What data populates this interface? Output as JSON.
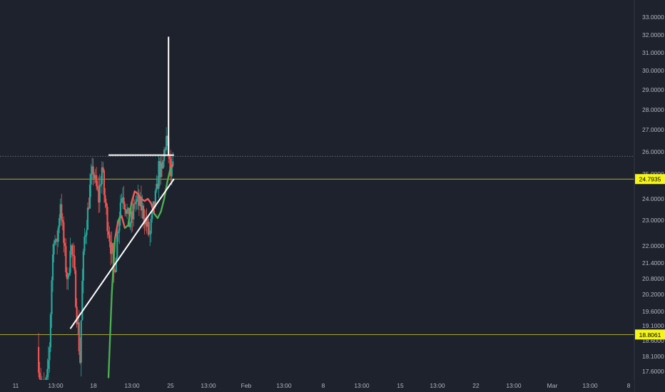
{
  "colors": {
    "background": "#1e222d",
    "up": "#26a69a",
    "down": "#ef5350",
    "axis_text": "#b2b5be",
    "pattern": "#ffffff",
    "hline": "#d6d23a",
    "dotted": "#9598a1",
    "ma_green": "#4caf50",
    "ma_red": "#f05a5a",
    "badge_bg": "#f5f518",
    "badge_text": "#000000",
    "axis_border": "#363a45"
  },
  "chart_data": {
    "type": "candlestick",
    "x_axis": {
      "tick_labels": [
        "11",
        "13:00",
        "18",
        "13:00",
        "25",
        "13:00",
        "Feb",
        "13:00",
        "8",
        "13:00",
        "15",
        "13:00",
        "22",
        "13:00",
        "Mar",
        "13:00",
        "8"
      ]
    },
    "y_axis": {
      "ylim": [
        17.4,
        33.3
      ],
      "tick_labels": [
        "33.0000",
        "32.0000",
        "31.0000",
        "30.0000",
        "29.0000",
        "28.0000",
        "27.0000",
        "26.0000",
        "25.0000",
        "24.0000",
        "23.0000",
        "22.0000",
        "21.4000",
        "20.8000",
        "20.2000",
        "19.6000",
        "19.1000",
        "18.6000",
        "18.1000",
        "17.6000"
      ]
    },
    "price_badges": [
      "24.7935",
      "18.8061"
    ],
    "horizontal_lines": [
      24.7935,
      18.8061
    ],
    "dotted_line": 25.8,
    "annotation_lines": [
      {
        "from": {
          "x": "Jan 28",
          "y": 25.85
        },
        "to": {
          "x": "Feb 9",
          "y": 25.85
        }
      },
      {
        "from": {
          "x": "Jan 21",
          "y": 19.0
        },
        "to": {
          "x": "Feb 9",
          "y": 24.8
        }
      },
      {
        "from": {
          "x": "Feb 8",
          "y": 31.9
        },
        "to": {
          "x": "Feb 8",
          "y": 25.85
        }
      }
    ],
    "moving_average": {
      "points": [
        [
          18.0,
          17.4
        ],
        [
          18.6,
          20.2
        ],
        [
          19.2,
          22.3
        ],
        [
          19.8,
          23.0
        ],
        [
          20.4,
          23.2
        ],
        [
          21.0,
          22.7
        ],
        [
          21.6,
          22.8
        ],
        [
          22.2,
          23.8
        ],
        [
          22.8,
          24.3
        ],
        [
          23.4,
          24.2
        ],
        [
          24.0,
          24.0
        ],
        [
          24.6,
          23.9
        ],
        [
          25.2,
          24.0
        ],
        [
          25.8,
          23.8
        ],
        [
          26.4,
          23.3
        ],
        [
          27.0,
          23.1
        ],
        [
          27.6,
          23.4
        ],
        [
          28.2,
          24.0
        ],
        [
          28.8,
          24.7
        ],
        [
          29.4,
          25.3
        ],
        [
          29.8,
          25.4
        ]
      ],
      "green_segments": [
        [
          0,
          1
        ],
        [
          1,
          2
        ],
        [
          3,
          4
        ],
        [
          5,
          6
        ],
        [
          6,
          7
        ],
        [
          14,
          15
        ],
        [
          15,
          16
        ],
        [
          16,
          17
        ],
        [
          17,
          18
        ],
        [
          18,
          19
        ]
      ]
    },
    "candles": {
      "start": 5.0,
      "end": 29.8,
      "step": 0.2,
      "anchors": [
        [
          5.0,
          18.4
        ],
        [
          5.6,
          17.2
        ],
        [
          6.2,
          16.8
        ],
        [
          6.8,
          17.3
        ],
        [
          7.2,
          18.5
        ],
        [
          7.6,
          20.8
        ],
        [
          8.0,
          22.5
        ],
        [
          8.4,
          21.9
        ],
        [
          8.8,
          22.7
        ],
        [
          9.2,
          23.9
        ],
        [
          9.6,
          22.6
        ],
        [
          10.0,
          21.6
        ],
        [
          10.6,
          20.6
        ],
        [
          11.0,
          22.2
        ],
        [
          11.6,
          21.3
        ],
        [
          12.0,
          20.2
        ],
        [
          12.4,
          19.0
        ],
        [
          12.8,
          18.0
        ],
        [
          13.2,
          20.6
        ],
        [
          13.6,
          22.3
        ],
        [
          14.2,
          23.4
        ],
        [
          14.6,
          24.4
        ],
        [
          15.2,
          25.2
        ],
        [
          15.6,
          24.6
        ],
        [
          16.2,
          24.0
        ],
        [
          16.8,
          25.3
        ],
        [
          17.2,
          24.2
        ],
        [
          17.8,
          23.0
        ],
        [
          18.4,
          22.1
        ],
        [
          19.0,
          21.0
        ],
        [
          19.6,
          22.4
        ],
        [
          20.2,
          23.9
        ],
        [
          20.6,
          24.3
        ],
        [
          21.2,
          23.6
        ],
        [
          21.8,
          22.9
        ],
        [
          22.4,
          23.1
        ],
        [
          22.8,
          23.9
        ],
        [
          23.4,
          23.8
        ],
        [
          24.0,
          23.6
        ],
        [
          24.6,
          23.2
        ],
        [
          25.2,
          22.6
        ],
        [
          25.6,
          22.4
        ],
        [
          26.2,
          23.5
        ],
        [
          26.8,
          24.2
        ],
        [
          27.2,
          25.3
        ],
        [
          27.8,
          25.0
        ],
        [
          28.2,
          26.0
        ],
        [
          28.6,
          26.6
        ],
        [
          29.0,
          25.9
        ],
        [
          29.4,
          24.9
        ],
        [
          29.8,
          25.2
        ]
      ]
    }
  }
}
